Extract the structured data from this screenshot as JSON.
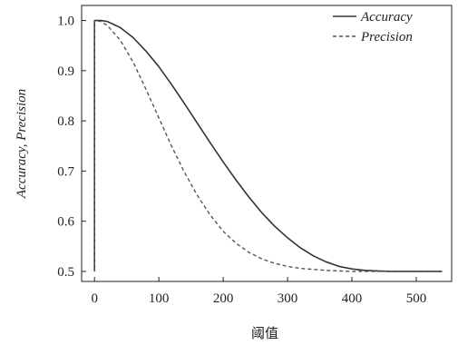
{
  "chart_data": {
    "type": "line",
    "xlabel": "阈值",
    "ylabel": "Accuracy, Precision",
    "xlim": [
      -20,
      555
    ],
    "ylim": [
      0.48,
      1.03
    ],
    "xticks": [
      "0",
      "100",
      "200",
      "300",
      "400",
      "500"
    ],
    "yticks": [
      "0.5",
      "0.6",
      "0.7",
      "0.8",
      "0.9",
      "1.0"
    ],
    "legend_position": "top-right",
    "grid": false,
    "series": [
      {
        "name": "Accuracy",
        "style": "solid",
        "color": "#333333",
        "x": [
          0,
          0,
          10,
          20,
          40,
          60,
          80,
          100,
          120,
          140,
          160,
          180,
          200,
          220,
          240,
          260,
          280,
          300,
          320,
          340,
          360,
          380,
          400,
          420,
          440,
          460,
          480,
          500,
          520,
          540
        ],
        "y": [
          0.5,
          1.0,
          1.0,
          0.998,
          0.986,
          0.966,
          0.939,
          0.908,
          0.872,
          0.834,
          0.795,
          0.756,
          0.718,
          0.682,
          0.648,
          0.617,
          0.59,
          0.567,
          0.547,
          0.531,
          0.519,
          0.51,
          0.505,
          0.502,
          0.501,
          0.5,
          0.5,
          0.5,
          0.5,
          0.5
        ]
      },
      {
        "name": "Precision",
        "style": "dashed",
        "color": "#555555",
        "x": [
          0,
          0,
          10,
          20,
          40,
          60,
          80,
          100,
          120,
          140,
          160,
          180,
          200,
          220,
          240,
          260,
          280,
          300,
          320,
          340,
          360,
          380,
          400,
          420,
          440,
          460,
          480,
          500,
          520,
          540
        ],
        "y": [
          0.5,
          1.0,
          0.998,
          0.99,
          0.961,
          0.917,
          0.863,
          0.806,
          0.749,
          0.697,
          0.651,
          0.612,
          0.58,
          0.556,
          0.538,
          0.525,
          0.516,
          0.51,
          0.506,
          0.504,
          0.502,
          0.501,
          0.5,
          0.5,
          0.5,
          0.5,
          0.5,
          0.5,
          0.5,
          0.5
        ]
      }
    ]
  }
}
